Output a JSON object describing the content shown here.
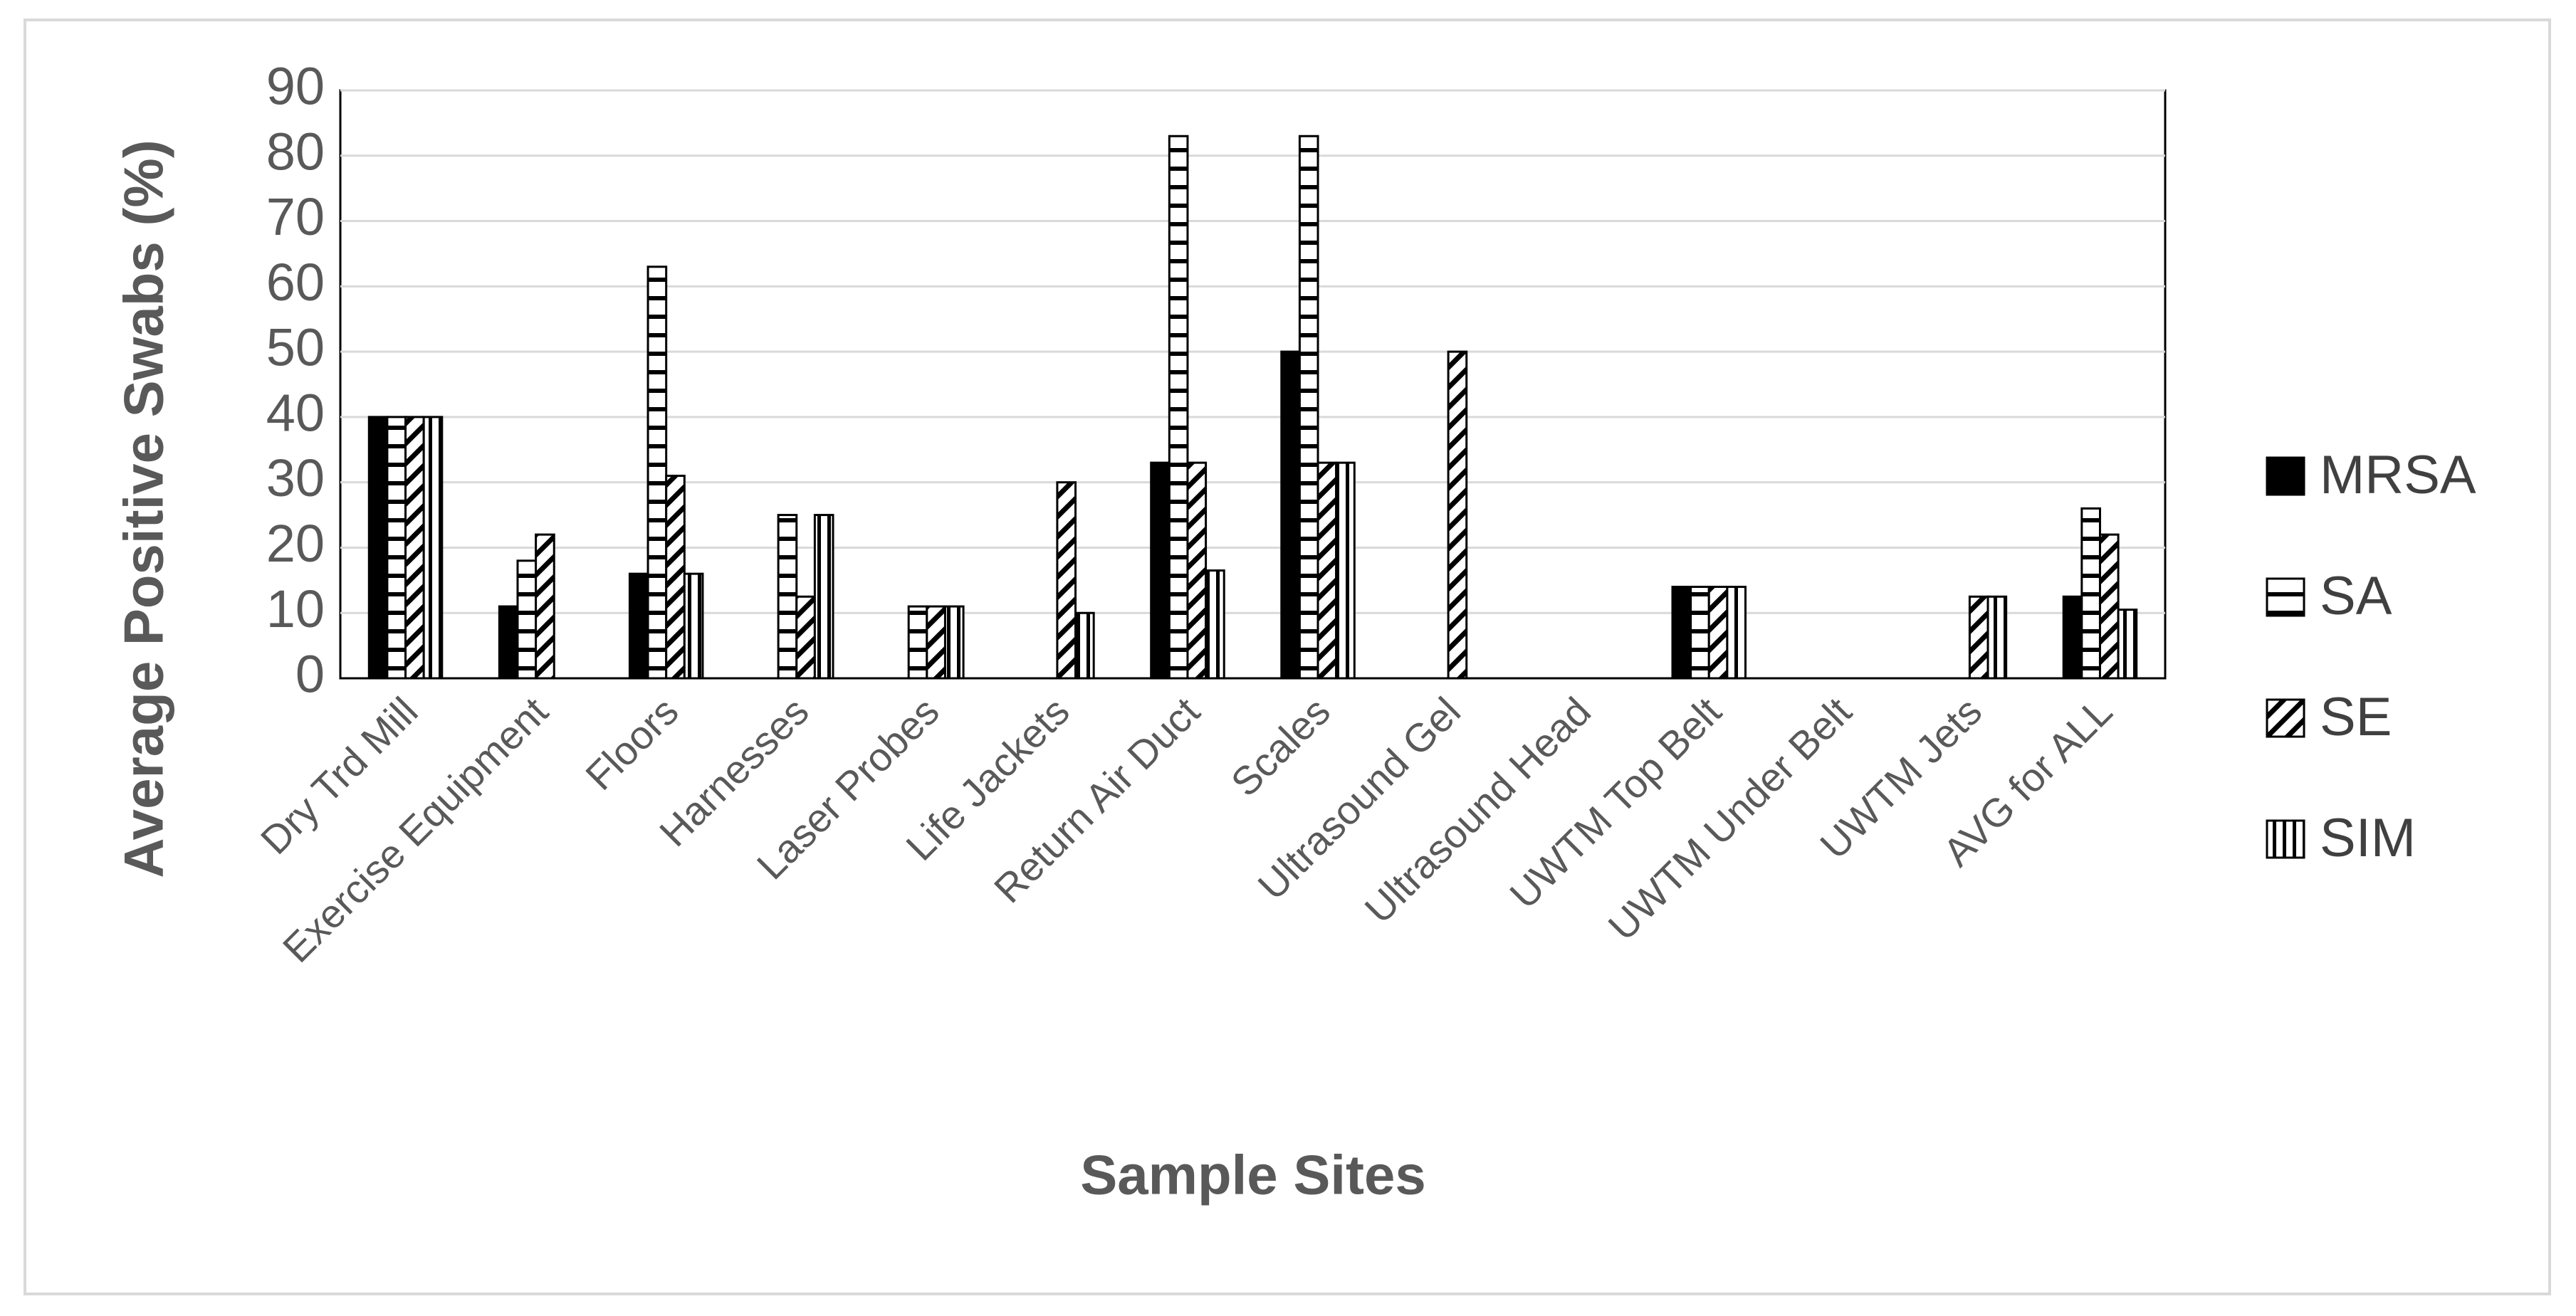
{
  "chart_data": {
    "type": "bar",
    "x_label": "Sample Sites",
    "y_label": "Average Positive Swabs (%)",
    "categories": [
      "Dry Trd Mill",
      "Exercise Equipment",
      "Floors",
      "Harnesses",
      "Laser Probes",
      "Life Jackets",
      "Return Air Duct",
      "Scales",
      "Ultrasound Gel",
      "Ultrasound Head",
      "UWTM Top Belt",
      "UWTM Under Belt",
      "UWTM Jets",
      "AVG for ALL"
    ],
    "series": [
      {
        "name": "MRSA",
        "color": "#000000",
        "pattern": "solid",
        "values": [
          40,
          11,
          16,
          0,
          0,
          0,
          33,
          50,
          0,
          0,
          14,
          0,
          0,
          12.5
        ]
      },
      {
        "name": "SA",
        "color": "#000000",
        "pattern": "horizontal",
        "values": [
          40,
          18,
          63,
          25,
          11,
          0,
          83,
          83,
          0,
          0,
          14,
          0,
          0,
          26
        ]
      },
      {
        "name": "SE",
        "color": "#000000",
        "pattern": "diagonal",
        "values": [
          40,
          22,
          31,
          12.5,
          11,
          30,
          33,
          33,
          50,
          0,
          14,
          0,
          12.5,
          22
        ]
      },
      {
        "name": "SIM",
        "color": "#000000",
        "pattern": "vertical",
        "values": [
          40,
          0,
          16,
          25,
          11,
          10,
          16.5,
          33,
          0,
          0,
          14,
          0,
          12.5,
          10.5
        ]
      }
    ],
    "ylim": [
      0,
      90
    ],
    "yticks": [
      0,
      10,
      20,
      30,
      40,
      50,
      60,
      70,
      80,
      90
    ],
    "grid": true,
    "legend": "right"
  }
}
